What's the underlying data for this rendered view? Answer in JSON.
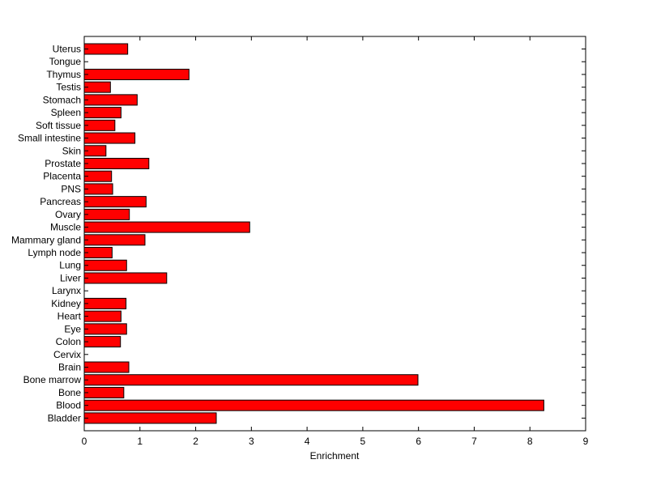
{
  "chart_data": {
    "type": "bar",
    "orientation": "horizontal",
    "title": "",
    "xlabel": "Enrichment",
    "ylabel": "",
    "xlim": [
      0,
      9
    ],
    "xticks": [
      "0",
      "1",
      "2",
      "3",
      "4",
      "5",
      "6",
      "7",
      "8",
      "9"
    ],
    "grid": false,
    "bar_color": "#ff0000",
    "categories": [
      "Uterus",
      "Tongue",
      "Thymus",
      "Testis",
      "Stomach",
      "Spleen",
      "Soft tissue",
      "Small intestine",
      "Skin",
      "Prostate",
      "Placenta",
      "PNS",
      "Pancreas",
      "Ovary",
      "Muscle",
      "Mammary gland",
      "Lymph node",
      "Lung",
      "Liver",
      "Larynx",
      "Kidney",
      "Heart",
      "Eye",
      "Colon",
      "Cervix",
      "Brain",
      "Bone marrow",
      "Bone",
      "Blood",
      "Bladder"
    ],
    "values": [
      0.78,
      0.0,
      1.88,
      0.47,
      0.95,
      0.66,
      0.55,
      0.91,
      0.39,
      1.16,
      0.49,
      0.51,
      1.11,
      0.81,
      2.97,
      1.09,
      0.5,
      0.76,
      1.48,
      0.0,
      0.75,
      0.66,
      0.76,
      0.65,
      0.0,
      0.8,
      5.99,
      0.71,
      8.25,
      2.37
    ]
  }
}
